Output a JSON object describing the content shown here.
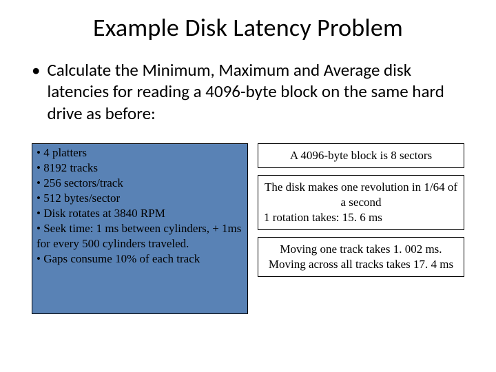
{
  "title": "Example Disk Latency Problem",
  "mainBullet": "Calculate the Minimum, Maximum and Average disk latencies for reading a 4096-byte block on the same hard drive as before:",
  "specs": [
    "• 4 platters",
    "• 8192 tracks",
    "• 256 sectors/track",
    "• 512 bytes/sector",
    "• Disk rotates at 3840 RPM",
    "• Seek time: 1 ms between cylinders, + 1ms for every 500 cylinders traveled.",
    "• Gaps consume 10% of each track"
  ],
  "box1": "A 4096-byte block is 8 sectors",
  "box2a": "The disk makes one revolution in 1/64 of a second",
  "box2b": "1 rotation takes: 15. 6 ms",
  "box3a": "Moving one track takes 1. 002 ms.",
  "box3b": "Moving across all tracks takes 17. 4 ms",
  "colors": {
    "leftBoxBg": "#5982b5",
    "border": "#000000",
    "pageBg": "#ffffff"
  }
}
